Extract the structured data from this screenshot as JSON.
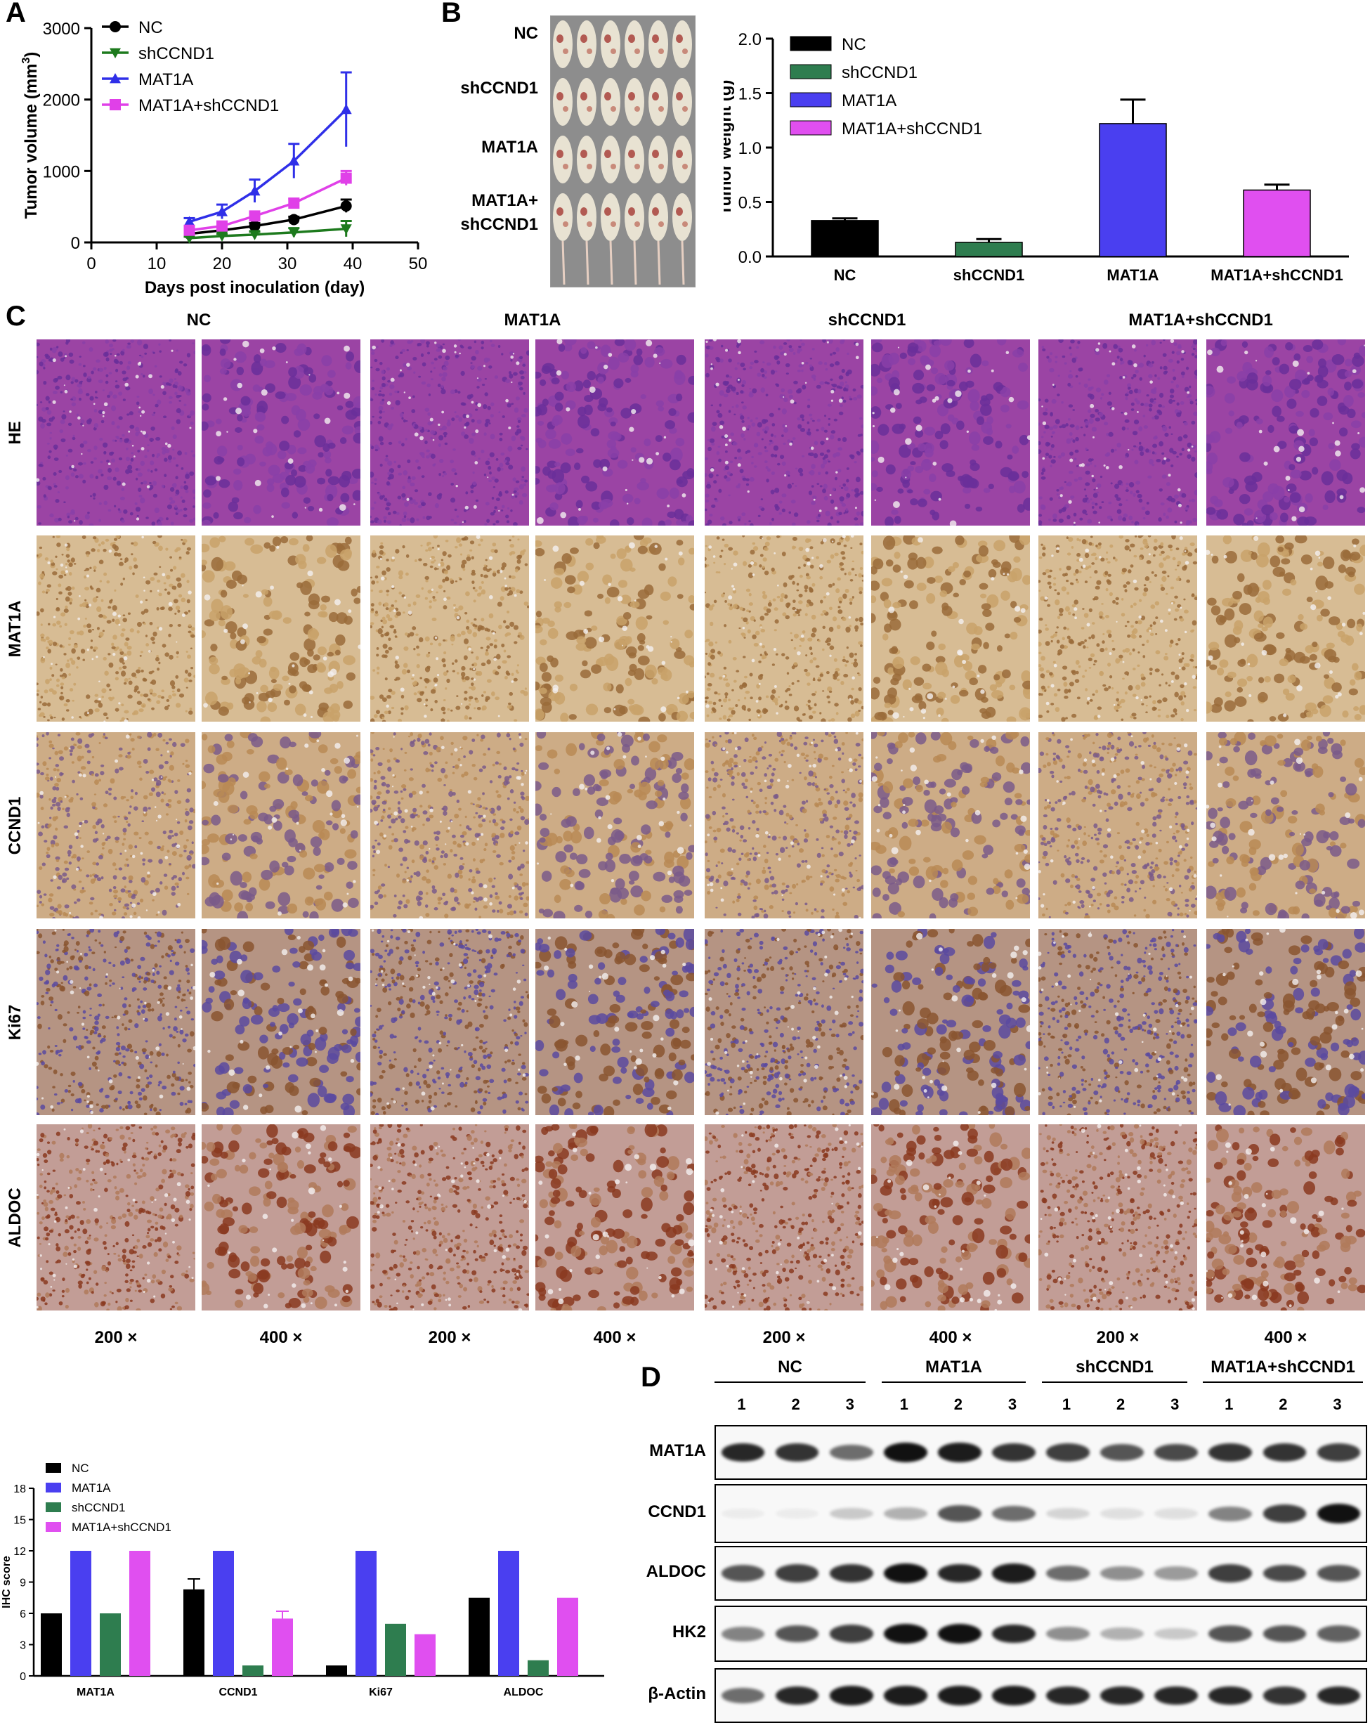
{
  "panels": {
    "A": "A",
    "B": "B",
    "C": "C",
    "D": "D"
  },
  "chart_data": [
    {
      "id": "A",
      "type": "line",
      "xlabel": "Days post inoculation (day)",
      "ylabel": "Tumor volume (mm",
      "ylabel_sup": "3",
      "ylabel_end": ")",
      "xlim": [
        0,
        50
      ],
      "ylim": [
        0,
        3000
      ],
      "xticks": [
        0,
        10,
        20,
        30,
        40,
        50
      ],
      "yticks": [
        0,
        1000,
        2000,
        3000
      ],
      "legend": "top-left",
      "grid": false,
      "x": [
        15,
        20,
        25,
        31,
        39
      ],
      "series": [
        {
          "name": "NC",
          "color": "#000000",
          "marker": "circle",
          "values": [
            120,
            170,
            230,
            320,
            510
          ],
          "err": [
            30,
            40,
            40,
            40,
            90
          ]
        },
        {
          "name": "shCCND1",
          "color": "#1d7a1d",
          "marker": "triangle-down",
          "values": [
            60,
            90,
            110,
            140,
            190
          ],
          "err": [
            20,
            30,
            40,
            60,
            110
          ]
        },
        {
          "name": "MAT1A",
          "color": "#2f2fe8",
          "marker": "triangle-up",
          "values": [
            290,
            430,
            720,
            1140,
            1860
          ],
          "err": [
            50,
            100,
            160,
            240,
            520
          ]
        },
        {
          "name": "MAT1A+shCCND1",
          "color": "#e040e8",
          "marker": "square",
          "values": [
            170,
            230,
            370,
            550,
            900
          ],
          "err": [
            30,
            40,
            60,
            60,
            100
          ]
        }
      ]
    },
    {
      "id": "B",
      "type": "bar",
      "ylabel": "Tumor weight (g)",
      "ylim": [
        0,
        2.0
      ],
      "yticks": [
        "0.0",
        "0.5",
        "1.0",
        "1.5",
        "2.0"
      ],
      "legend": "top-left",
      "categories": [
        "NC",
        "shCCND1",
        "MAT1A",
        "MAT1A+shCCND1"
      ],
      "values": [
        0.33,
        0.13,
        1.22,
        0.61
      ],
      "err": [
        0.02,
        0.03,
        0.22,
        0.05
      ],
      "colors": [
        "#000000",
        "#2e7d4f",
        "#4a3ff0",
        "#e04ff0"
      ]
    },
    {
      "id": "IHC",
      "type": "bar",
      "ylabel": "IHC score",
      "ylim": [
        0,
        18
      ],
      "yticks": [
        0,
        3,
        6,
        9,
        12,
        15,
        18
      ],
      "legend": "top-left",
      "categories": [
        "MAT1A",
        "CCND1",
        "Ki67",
        "ALDOC"
      ],
      "series": [
        {
          "name": "NC",
          "color": "#000000",
          "values": [
            6,
            8.3,
            1,
            7.5
          ],
          "err": [
            0,
            1.0,
            0,
            0
          ]
        },
        {
          "name": "MAT1A",
          "color": "#4a3ff0",
          "values": [
            12,
            12,
            12,
            12
          ],
          "err": [
            0,
            0,
            0,
            0
          ]
        },
        {
          "name": "shCCND1",
          "color": "#2e7d4f",
          "values": [
            6,
            1,
            5,
            1.5
          ],
          "err": [
            0,
            0,
            0,
            0
          ]
        },
        {
          "name": "MAT1A+shCCND1",
          "color": "#e04ff0",
          "values": [
            12,
            5.5,
            4,
            7.5
          ],
          "err": [
            0,
            0.7,
            0,
            0
          ]
        }
      ]
    }
  ],
  "mice": {
    "labels": [
      "NC",
      "shCCND1",
      "MAT1A",
      "MAT1A+\nshCCND1"
    ],
    "label_lines": [
      [
        "NC"
      ],
      [
        "shCCND1"
      ],
      [
        "MAT1A"
      ],
      [
        "MAT1A+",
        "shCCND1"
      ]
    ]
  },
  "histology": {
    "columns": [
      "NC",
      "MAT1A",
      "shCCND1",
      "MAT1A+shCCND1"
    ],
    "rows": [
      "HE",
      "MAT1A",
      "CCND1",
      "Ki67",
      "ALDOC"
    ],
    "magnifications": [
      "200 ×",
      "400 ×",
      "200 ×",
      "400 ×",
      "200 ×",
      "400 ×",
      "200 ×",
      "400 ×"
    ],
    "stain_colors": {
      "HE": [
        "#8a3fa8",
        "#b04aa0",
        "#6a2f9a"
      ],
      "MAT1A": [
        "#c9a26a",
        "#e8dcc8",
        "#9a6b3a"
      ],
      "CCND1": [
        "#b88a55",
        "#e6d6c2",
        "#7a5a8a"
      ],
      "Ki67": [
        "#8a5530",
        "#e8e0e8",
        "#5a4aa0"
      ],
      "ALDOC": [
        "#b07a5a",
        "#d8c8e0",
        "#8a3a20"
      ]
    }
  },
  "western": {
    "groups": [
      "NC",
      "MAT1A",
      "shCCND1",
      "MAT1A+shCCND1"
    ],
    "lanes": [
      "1",
      "2",
      "3",
      "1",
      "2",
      "3",
      "1",
      "2",
      "3",
      "1",
      "2",
      "3"
    ],
    "proteins": [
      "MAT1A",
      "CCND1",
      "ALDOC",
      "HK2",
      "β-Actin"
    ],
    "intensity": {
      "MAT1A": [
        0.9,
        0.85,
        0.6,
        1.0,
        0.95,
        0.85,
        0.8,
        0.7,
        0.75,
        0.85,
        0.85,
        0.8
      ],
      "CCND1": [
        0.02,
        0.05,
        0.2,
        0.3,
        0.7,
        0.6,
        0.15,
        0.1,
        0.1,
        0.5,
        0.8,
        1.0
      ],
      "ALDOC": [
        0.7,
        0.8,
        0.85,
        1.0,
        0.9,
        0.95,
        0.6,
        0.45,
        0.4,
        0.8,
        0.75,
        0.7
      ],
      "HK2": [
        0.5,
        0.7,
        0.8,
        1.0,
        1.0,
        0.9,
        0.45,
        0.3,
        0.2,
        0.7,
        0.7,
        0.65
      ],
      "β-Actin": [
        0.6,
        0.9,
        0.95,
        0.95,
        0.95,
        0.95,
        0.9,
        0.9,
        0.9,
        0.9,
        0.85,
        0.9
      ]
    }
  }
}
